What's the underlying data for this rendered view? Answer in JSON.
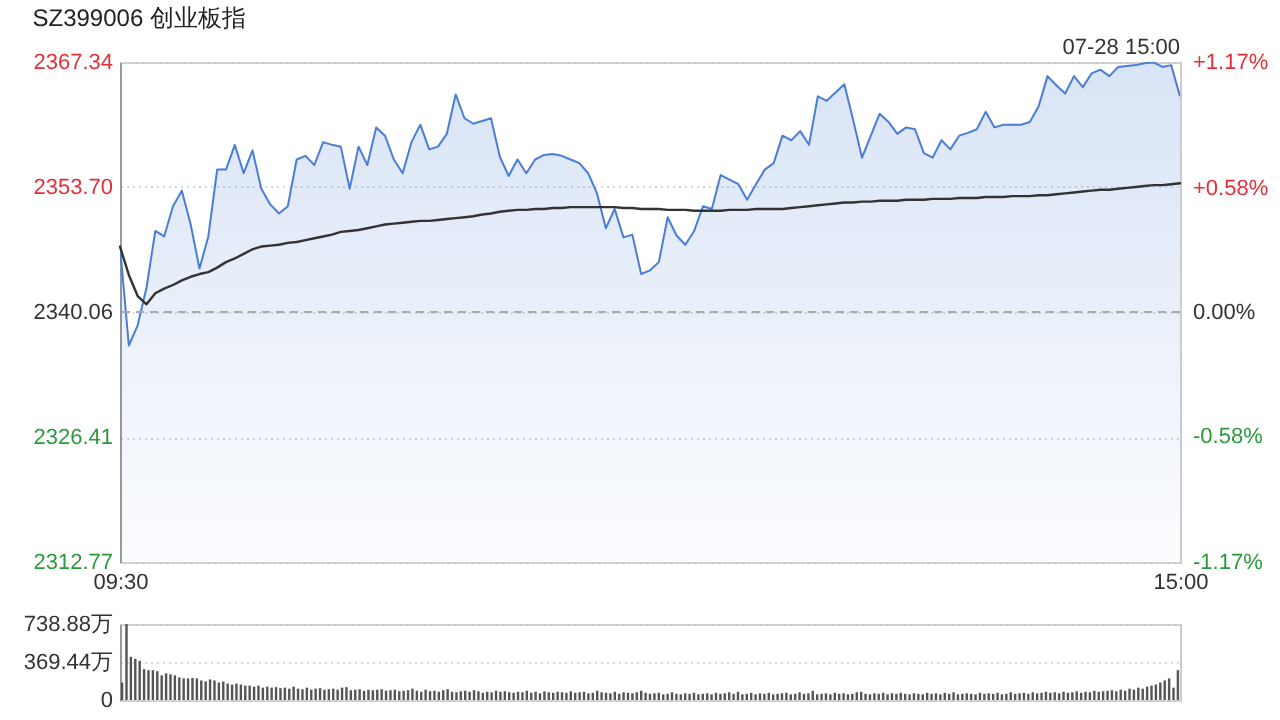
{
  "chart_data": [
    {
      "type": "line",
      "title": "SZ399006 创业板指",
      "annotations": [
        "07-28 15:00"
      ],
      "categories": [
        "09:30",
        null,
        null,
        null,
        null,
        null,
        null,
        null,
        null,
        null,
        null,
        null,
        null,
        null,
        null,
        null,
        null,
        null,
        null,
        null,
        null,
        null,
        null,
        null,
        null,
        null,
        null,
        null,
        null,
        null,
        null,
        null,
        null,
        null,
        null,
        null,
        null,
        null,
        null,
        null,
        null,
        null,
        null,
        null,
        null,
        null,
        null,
        null,
        null,
        null,
        null,
        null,
        null,
        null,
        null,
        null,
        null,
        null,
        null,
        null,
        null,
        null,
        null,
        null,
        null,
        null,
        null,
        null,
        null,
        null,
        null,
        null,
        null,
        null,
        null,
        null,
        null,
        null,
        null,
        null,
        null,
        null,
        null,
        null,
        null,
        null,
        null,
        null,
        null,
        null,
        null,
        null,
        null,
        null,
        null,
        null,
        null,
        null,
        null,
        null,
        null,
        null,
        null,
        null,
        null,
        null,
        null,
        null,
        null,
        null,
        null,
        null,
        null,
        null,
        null,
        null,
        null,
        null,
        null,
        null,
        "15:00"
      ],
      "ylim": [
        2312.77,
        2367.34
      ],
      "yticks": [
        2367.34,
        {
          "value": 2353.7,
          "label": "2353.70"
        },
        2340.06,
        2326.41,
        2312.77
      ],
      "y2lim": [
        -1.17,
        1.17
      ],
      "y2ticks": [
        {
          "value": 1.17,
          "label": "+1.17%"
        },
        {
          "value": 0.58,
          "label": "+0.58%"
        },
        {
          "value": 0,
          "label": "0.00%"
        },
        {
          "value": -0.58,
          "label": "-0.58%"
        },
        {
          "value": -1.17,
          "label": "-1.17%"
        }
      ],
      "grid": "y",
      "ref_lines": [
        {
          "axis": "y2",
          "value": 0,
          "color": "#aaaaaa",
          "line_style": "dashed"
        }
      ],
      "series": [
        {
          "type": "area",
          "color": "#4a7ed6",
          "values": [
            2347.2,
            2336.4,
            2338.6,
            2342.7,
            2348.9,
            2348.3,
            2351.6,
            2353.3,
            2349.6,
            2344.8,
            2348.3,
            2355.6,
            2355.6,
            2358.3,
            2355.2,
            2357.7,
            2353.5,
            2351.8,
            2350.8,
            2351.6,
            2356.7,
            2357.1,
            2356.1,
            2358.6,
            2358.3,
            2358.1,
            2353.5,
            2358.1,
            2356.1,
            2360.2,
            2359.3,
            2356.7,
            2355.2,
            2358.6,
            2360.5,
            2357.8,
            2358.1,
            2359.5,
            2363.8,
            2361.2,
            2360.6,
            2360.9,
            2361.2,
            2357.0,
            2354.9,
            2356.7,
            2355.2,
            2356.7,
            2357.2,
            2357.3,
            2357.1,
            2356.7,
            2356.3,
            2355.2,
            2353.0,
            2349.2,
            2351.3,
            2348.2,
            2348.5,
            2344.2,
            2344.6,
            2345.5,
            2350.4,
            2348.4,
            2347.4,
            2348.9,
            2351.6,
            2351.3,
            2355.0,
            2354.5,
            2354.0,
            2352.3,
            2354.0,
            2355.6,
            2356.3,
            2359.3,
            2358.8,
            2359.8,
            2358.3,
            2363.6,
            2363.1,
            2364.0,
            2364.9,
            2361.0,
            2356.9,
            2359.3,
            2361.7,
            2360.8,
            2359.5,
            2360.2,
            2360.0,
            2357.4,
            2356.9,
            2358.8,
            2357.8,
            2359.3,
            2359.6,
            2360.0,
            2361.9,
            2360.2,
            2360.5,
            2360.5,
            2360.5,
            2360.8,
            2362.5,
            2365.8,
            2364.8,
            2363.9,
            2365.8,
            2364.6,
            2366.1,
            2366.5,
            2365.8,
            2366.8,
            2366.9,
            2367.0,
            2367.2,
            2367.3,
            2366.8,
            2367.0,
            2363.6
          ]
        },
        {
          "type": "line",
          "color": "#333333",
          "values": [
            2347.2,
            2344.1,
            2341.8,
            2340.9,
            2342.1,
            2342.6,
            2343.0,
            2343.5,
            2343.9,
            2344.2,
            2344.4,
            2344.9,
            2345.5,
            2345.9,
            2346.4,
            2346.9,
            2347.2,
            2347.3,
            2347.4,
            2347.6,
            2347.7,
            2347.9,
            2348.1,
            2348.3,
            2348.5,
            2348.8,
            2348.9,
            2349.0,
            2349.2,
            2349.4,
            2349.6,
            2349.7,
            2349.8,
            2349.9,
            2350.0,
            2350.0,
            2350.1,
            2350.2,
            2350.3,
            2350.4,
            2350.5,
            2350.7,
            2350.8,
            2351.0,
            2351.1,
            2351.2,
            2351.2,
            2351.3,
            2351.3,
            2351.4,
            2351.4,
            2351.5,
            2351.5,
            2351.5,
            2351.5,
            2351.5,
            2351.5,
            2351.4,
            2351.4,
            2351.3,
            2351.3,
            2351.3,
            2351.2,
            2351.2,
            2351.2,
            2351.1,
            2351.1,
            2351.1,
            2351.1,
            2351.2,
            2351.2,
            2351.2,
            2351.3,
            2351.3,
            2351.3,
            2351.3,
            2351.4,
            2351.5,
            2351.6,
            2351.7,
            2351.8,
            2351.9,
            2352.0,
            2352.0,
            2352.1,
            2352.1,
            2352.2,
            2352.2,
            2352.2,
            2352.3,
            2352.3,
            2352.3,
            2352.4,
            2352.4,
            2352.4,
            2352.5,
            2352.5,
            2352.5,
            2352.6,
            2352.6,
            2352.6,
            2352.7,
            2352.7,
            2352.7,
            2352.8,
            2352.8,
            2352.9,
            2353.0,
            2353.1,
            2353.2,
            2353.3,
            2353.4,
            2353.4,
            2353.5,
            2353.6,
            2353.7,
            2353.8,
            2353.9,
            2353.9,
            2354.0,
            2354.1
          ]
        }
      ]
    },
    {
      "type": "bar",
      "ylim": [
        0,
        738.88
      ],
      "yticks": [
        0,
        {
          "value": 369.44,
          "label": "369.44万"
        },
        {
          "value": 738.88,
          "label": "738.88万"
        }
      ],
      "grid": "y",
      "categories": [
        null,
        null,
        null,
        null,
        null,
        null,
        null,
        null,
        null,
        null,
        null,
        null,
        null,
        null,
        null,
        null,
        null,
        null,
        null,
        null,
        null,
        null,
        null,
        null,
        null,
        null,
        null,
        null,
        null,
        null,
        null,
        null,
        null,
        null,
        null,
        null,
        null,
        null,
        null,
        null,
        null,
        null,
        null,
        null,
        null,
        null,
        null,
        null,
        null,
        null,
        null,
        null,
        null,
        null,
        null,
        null,
        null,
        null,
        null,
        null,
        null,
        null,
        null,
        null,
        null,
        null,
        null,
        null,
        null,
        null,
        null,
        null,
        null,
        null,
        null,
        null,
        null,
        null,
        null,
        null,
        null,
        null,
        null,
        null,
        null,
        null,
        null,
        null,
        null,
        null,
        null,
        null,
        null,
        null,
        null,
        null,
        null,
        null,
        null,
        null,
        null,
        null,
        null,
        null,
        null,
        null,
        null,
        null,
        null,
        null,
        null,
        null,
        null,
        null,
        null,
        null,
        null,
        null,
        null,
        null,
        null,
        null,
        null,
        null,
        null,
        null,
        null,
        null,
        null,
        null,
        null,
        null,
        null,
        null,
        null,
        null,
        null,
        null,
        null,
        null,
        null,
        null,
        null,
        null,
        null,
        null,
        null,
        null,
        null,
        null,
        null,
        null,
        null,
        null,
        null,
        null,
        null,
        null,
        null,
        null,
        null,
        null,
        null,
        null,
        null,
        null,
        null,
        null,
        null,
        null,
        null,
        null,
        null,
        null,
        null,
        null,
        null,
        null,
        null,
        null,
        null,
        null,
        null,
        null,
        null,
        null,
        null,
        null,
        null,
        null,
        null,
        null,
        null,
        null,
        null,
        null,
        null,
        null,
        null,
        null,
        null,
        null,
        null,
        null,
        null,
        null,
        null,
        null,
        null,
        null,
        null,
        null,
        null,
        null,
        null,
        null,
        null,
        null,
        null,
        null,
        null,
        null,
        null,
        null,
        null,
        null,
        null,
        null,
        null,
        null,
        null,
        null,
        null,
        null,
        null,
        null,
        null,
        null,
        null,
        null,
        null
      ],
      "series": [
        {
          "color": "#555555",
          "values": [
            170,
            738,
            420,
            400,
            380,
            300,
            290,
            290,
            280,
            240,
            260,
            250,
            240,
            220,
            210,
            210,
            215,
            210,
            190,
            180,
            200,
            190,
            170,
            180,
            160,
            150,
            160,
            150,
            140,
            140,
            130,
            140,
            120,
            130,
            120,
            125,
            115,
            120,
            110,
            130,
            110,
            105,
            120,
            100,
            110,
            115,
            100,
            105,
            110,
            100,
            120,
            125,
            95,
            100,
            105,
            90,
            100,
            95,
            100,
            105,
            90,
            95,
            100,
            85,
            90,
            95,
            110,
            90,
            80,
            100,
            85,
            90,
            80,
            95,
            105,
            80,
            75,
            85,
            90,
            80,
            95,
            85,
            70,
            80,
            75,
            90,
            80,
            85,
            75,
            70,
            80,
            75,
            90,
            70,
            80,
            65,
            85,
            75,
            70,
            80,
            75,
            70,
            85,
            70,
            75,
            80,
            65,
            70,
            90,
            75,
            70,
            65,
            80,
            60,
            75,
            70,
            65,
            75,
            90,
            70,
            60,
            65,
            70,
            55,
            60,
            75,
            60,
            55,
            65,
            60,
            70,
            55,
            60,
            65,
            55,
            70,
            60,
            65,
            75,
            60,
            80,
            55,
            60,
            70,
            55,
            65,
            60,
            70,
            55,
            60,
            65,
            70,
            55,
            60,
            75,
            60,
            65,
            90,
            55,
            60,
            65,
            55,
            70,
            60,
            65,
            55,
            60,
            75,
            80,
            60,
            55,
            65,
            60,
            70,
            55,
            65,
            60,
            70,
            60,
            55,
            65,
            60,
            55,
            70,
            60,
            65,
            55,
            70,
            60,
            75,
            55,
            60,
            65,
            60,
            55,
            70,
            60,
            65,
            60,
            70,
            55,
            60,
            75,
            60,
            65,
            70,
            60,
            75,
            65,
            70,
            80,
            70,
            75,
            65,
            80,
            70,
            75,
            85,
            70,
            80,
            75,
            90,
            80,
            85,
            90,
            95,
            85,
            100,
            90,
            110,
            100,
            120,
            110,
            130,
            140,
            150,
            170,
            190,
            210,
            120,
            290
          ]
        }
      ]
    }
  ]
}
